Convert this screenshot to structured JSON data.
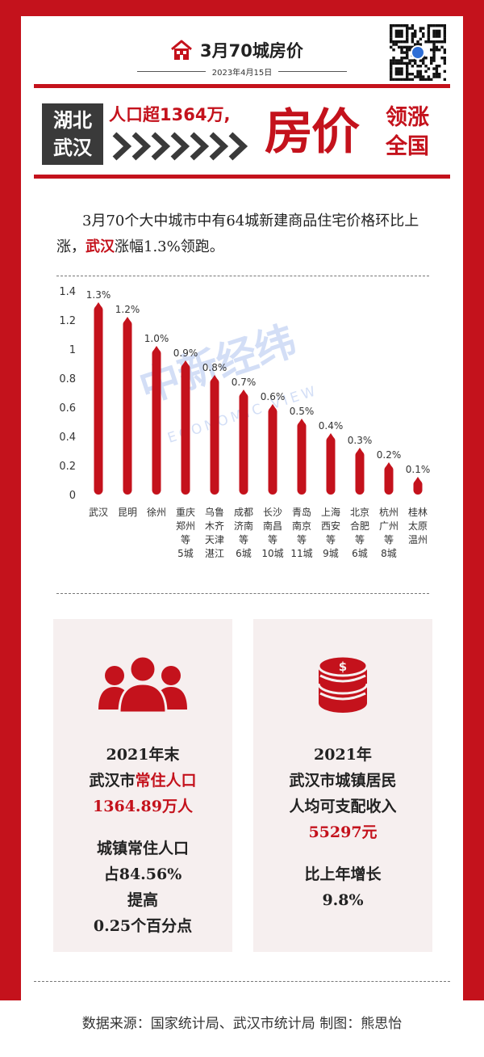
{
  "header": {
    "title": "3月70城房价",
    "date": "2023年4月15日"
  },
  "banner": {
    "city_line1": "湖北",
    "city_line2": "武汉",
    "population_text": "人口超1364万,",
    "big_text": "房价",
    "lead_line1": "领涨",
    "lead_line2": "全国"
  },
  "intro": {
    "part1": "3月70个大中城市中有64城新建商品住宅价格环比上涨，",
    "highlight": "武汉",
    "part2": "涨幅1.3%领跑。"
  },
  "watermark": {
    "logo_text": "中新经纬",
    "sub_text": "ECONOMIC VIEW"
  },
  "chart_data": {
    "type": "bar",
    "categories": [
      "武汉",
      "昆明",
      "徐州",
      "重庆郑州等5城",
      "乌鲁木齐天津湛江",
      "成都济南等6城",
      "长沙南昌等10城",
      "青岛南京等11城",
      "上海西安等9城",
      "北京合肥等6城",
      "杭州广州等8城",
      "桂林太原温州"
    ],
    "category_lines": [
      [
        "武汉"
      ],
      [
        "昆明"
      ],
      [
        "徐州"
      ],
      [
        "重庆",
        "郑州",
        "等",
        "5城"
      ],
      [
        "乌鲁",
        "木齐",
        "天津",
        "湛江"
      ],
      [
        "成都",
        "济南",
        "等",
        "6城"
      ],
      [
        "长沙",
        "南昌",
        "等",
        "10城"
      ],
      [
        "青岛",
        "南京",
        "等",
        "11城"
      ],
      [
        "上海",
        "西安",
        "等",
        "9城"
      ],
      [
        "北京",
        "合肥",
        "等",
        "6城"
      ],
      [
        "杭州",
        "广州",
        "等",
        "8城"
      ],
      [
        "桂林",
        "太原",
        "温州"
      ]
    ],
    "values": [
      1.3,
      1.2,
      1.0,
      0.9,
      0.8,
      0.7,
      0.6,
      0.5,
      0.4,
      0.3,
      0.2,
      0.1
    ],
    "value_labels": [
      "1.3%",
      "1.2%",
      "1.0%",
      "0.9%",
      "0.8%",
      "0.7%",
      "0.6%",
      "0.5%",
      "0.4%",
      "0.3%",
      "0.2%",
      "0.1%"
    ],
    "yticks": [
      "0",
      "0.2",
      "0.4",
      "0.6",
      "0.8",
      "1",
      "1.2",
      "1.4"
    ],
    "ylim": [
      0,
      1.4
    ],
    "bar_color": "#c4121c",
    "grid": false
  },
  "panel_left": {
    "icon": "people-icon",
    "year": "2021年末",
    "label_prefix": "武汉市",
    "label_highlight": "常住人口",
    "value": "1364.89万人",
    "line1": "城镇常住人口",
    "line2": "占84.56%",
    "line3": "提高",
    "line4": "0.25个百分点"
  },
  "panel_right": {
    "icon": "money-coins-icon",
    "year": "2021年",
    "line1": "武汉市城镇居民",
    "line2": "人均可支配收入",
    "value": "55297元",
    "growth_label": "比上年增长",
    "growth_value": "9.8%"
  },
  "footer": {
    "source": "数据来源：国家统计局、武汉市统计局 制图：熊思怡"
  },
  "colors": {
    "accent": "#c4121c",
    "dark": "#3a3a3a",
    "panel_bg": "#f6efef"
  }
}
